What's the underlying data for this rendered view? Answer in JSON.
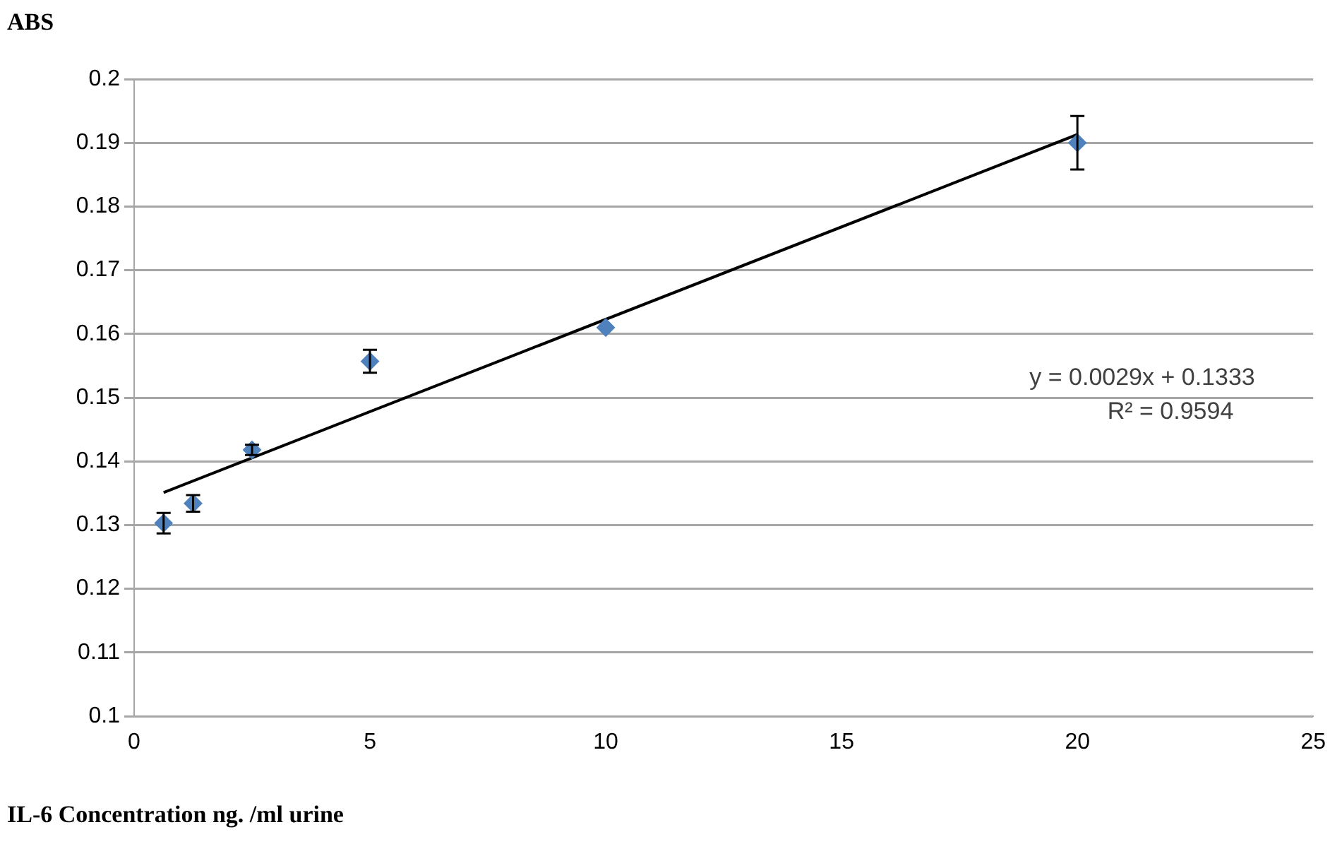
{
  "chart_data": {
    "type": "scatter",
    "xlabel": "IL-6 Concentration ng. /ml urine",
    "ylabel": "ABS",
    "x": [
      0.625,
      1.25,
      2.5,
      5,
      10,
      20
    ],
    "series": [
      {
        "color": "#4f81bd",
        "marker": "diamond",
        "values": [
          0.1303,
          0.1334,
          0.1418,
          0.1557,
          0.161,
          0.19
        ],
        "errors": [
          0.0016,
          0.0013,
          0.0008,
          0.0018,
          null,
          0.0042
        ]
      },
      {
        "type": "line",
        "color": "#000000",
        "marker": "none",
        "x": [
          0.625,
          20
        ],
        "values": [
          0.1351,
          0.1913
        ]
      }
    ],
    "xlim": [
      0,
      25
    ],
    "xticks": [
      0,
      5,
      10,
      15,
      20,
      25
    ],
    "ylim": [
      0.1,
      0.2
    ],
    "yticks": [
      0.1,
      0.11,
      0.12,
      0.13,
      0.14,
      0.15,
      0.16,
      0.17,
      0.18,
      0.19,
      0.2
    ],
    "grid": "y",
    "legend": false,
    "annotations": [
      "y = 0.0029x + 0.1333",
      "R² = 0.9594"
    ]
  }
}
